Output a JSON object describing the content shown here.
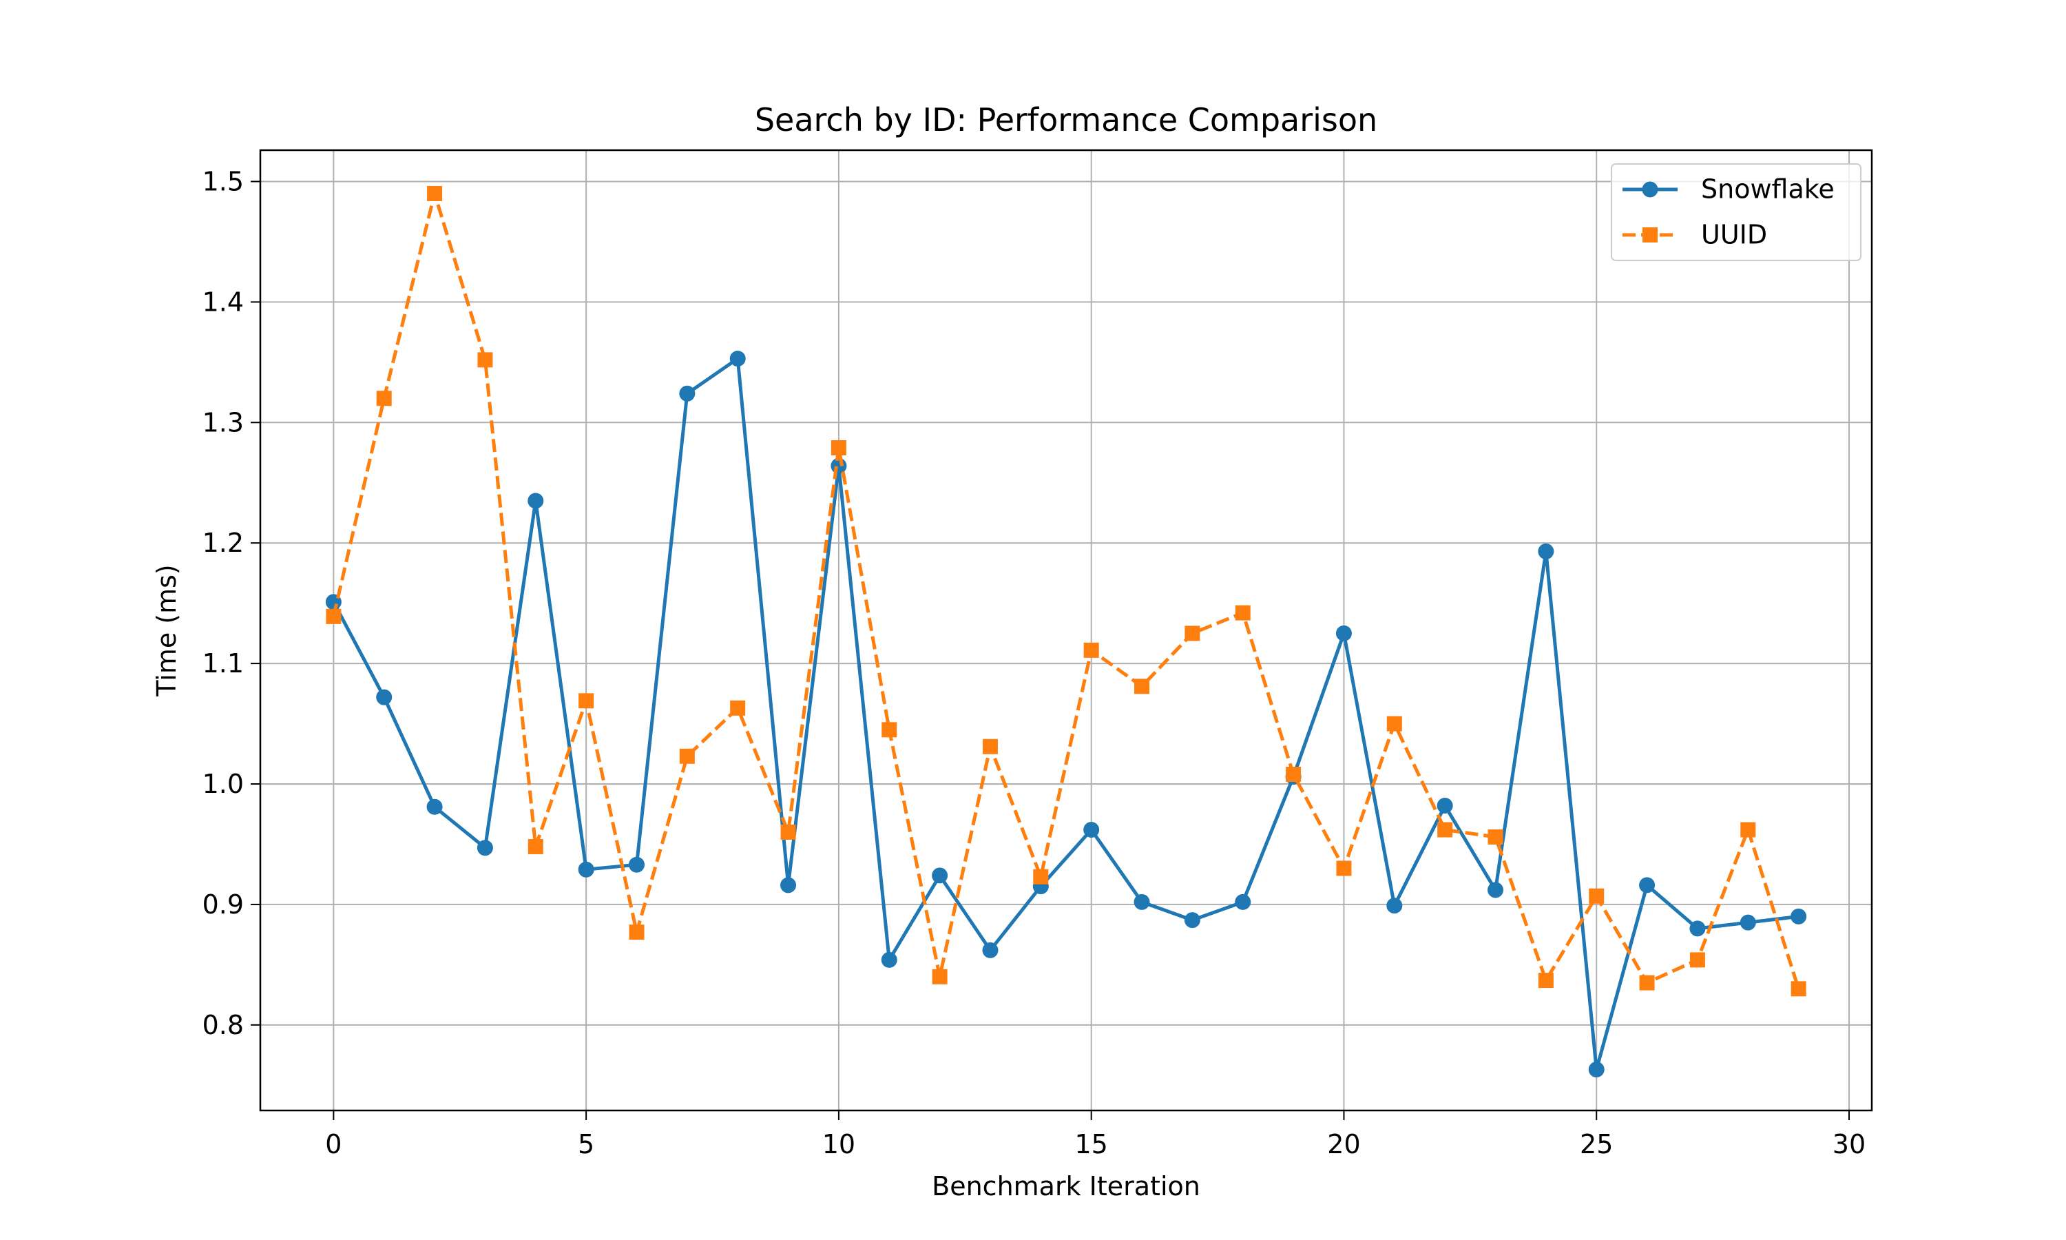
{
  "chart_data": {
    "type": "line",
    "title": "Search by ID: Performance Comparison",
    "xlabel": "Benchmark Iteration",
    "ylabel": "Time (ms)",
    "xlim": [
      -1.45,
      30.45
    ],
    "ylim": [
      0.729,
      1.526
    ],
    "xticks": [
      0,
      5,
      10,
      15,
      20,
      25,
      30
    ],
    "yticks": [
      0.8,
      0.9,
      1.0,
      1.1,
      1.2,
      1.3,
      1.4,
      1.5
    ],
    "xtick_labels": [
      "0",
      "5",
      "10",
      "15",
      "20",
      "25",
      "30"
    ],
    "ytick_labels": [
      "0.8",
      "0.9",
      "1.0",
      "1.1",
      "1.2",
      "1.3",
      "1.4",
      "1.5"
    ],
    "grid": true,
    "legend_position": "top-right",
    "x": [
      0,
      1,
      2,
      3,
      4,
      5,
      6,
      7,
      8,
      9,
      10,
      11,
      12,
      13,
      14,
      15,
      16,
      17,
      18,
      19,
      20,
      21,
      22,
      23,
      24,
      25,
      26,
      27,
      28,
      29
    ],
    "series": [
      {
        "name": "Snowflake",
        "color": "#1f77b4",
        "line_style": "solid",
        "marker": "circle",
        "values": [
          1.151,
          1.072,
          0.981,
          0.947,
          1.235,
          0.929,
          0.933,
          1.324,
          1.353,
          0.916,
          1.264,
          0.854,
          0.924,
          0.862,
          0.915,
          0.962,
          0.902,
          0.887,
          0.902,
          1.006,
          1.125,
          0.899,
          0.982,
          0.912,
          1.193,
          0.763,
          0.916,
          0.88,
          0.885,
          0.89
        ]
      },
      {
        "name": "UUID",
        "color": "#ff7f0e",
        "line_style": "dashed",
        "marker": "square",
        "values": [
          1.139,
          1.32,
          1.49,
          1.352,
          0.948,
          1.069,
          0.877,
          1.023,
          1.063,
          0.96,
          1.279,
          1.045,
          0.84,
          1.031,
          0.923,
          1.111,
          1.081,
          1.125,
          1.142,
          1.008,
          0.93,
          1.05,
          0.962,
          0.956,
          0.837,
          0.907,
          0.835,
          0.854,
          0.962,
          0.83
        ]
      }
    ]
  }
}
